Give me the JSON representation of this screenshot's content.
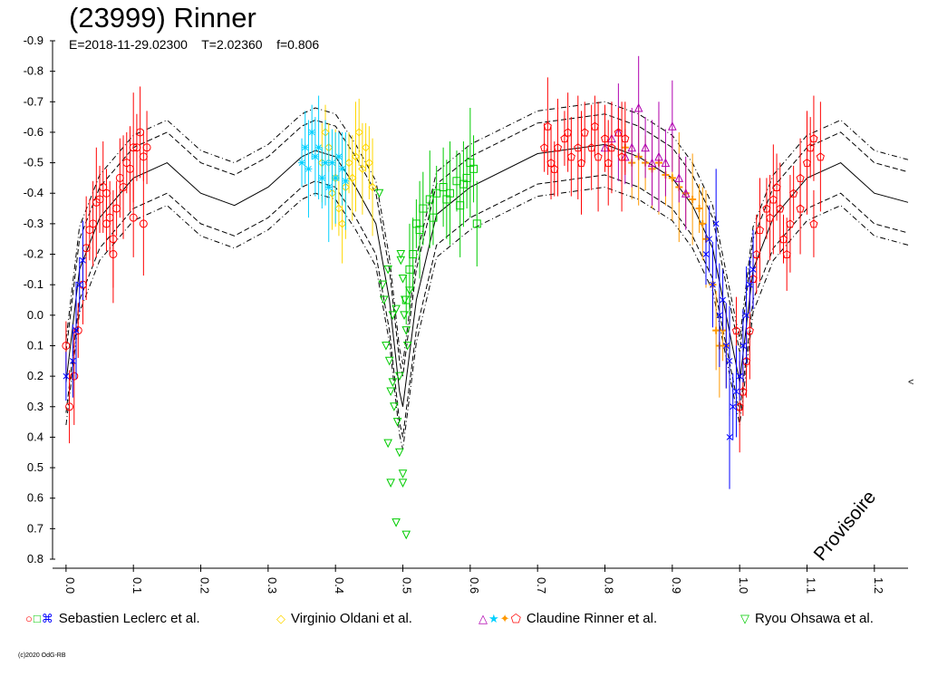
{
  "header": {
    "title": "(23999) Rinner",
    "subtitle": "E=2018-11-29.02300    T=2.02360    f=0.806"
  },
  "watermark": "Provisoire",
  "copyright": "(c)2020 OdG-RB",
  "edge_mark": "<",
  "legend": [
    {
      "label": "Sebastien Leclerc et al.",
      "symbols": [
        {
          "glyph": "○",
          "color": "#ff0000"
        },
        {
          "glyph": "□",
          "color": "#00cc00"
        },
        {
          "glyph": "⌘",
          "color": "#0000ff"
        }
      ]
    },
    {
      "label": "Virginio Oldani et al.",
      "symbols": [
        {
          "glyph": "◇",
          "color": "#ffd700"
        }
      ]
    },
    {
      "label": "Claudine Rinner et al.",
      "symbols": [
        {
          "glyph": "△",
          "color": "#b000b0"
        },
        {
          "glyph": "★",
          "color": "#00d0ff"
        },
        {
          "glyph": "✦",
          "color": "#ff9900"
        },
        {
          "glyph": "⬠",
          "color": "#ff0000"
        }
      ]
    },
    {
      "label": "Ryou Ohsawa et al.",
      "symbols": [
        {
          "glyph": "▽",
          "color": "#00cc00"
        }
      ]
    }
  ],
  "chart_data": {
    "type": "scatter",
    "title": "(23999) Rinner",
    "xlabel": "",
    "ylabel": "",
    "xlim": [
      -0.02,
      1.25
    ],
    "ylim": [
      0.8,
      -0.9
    ],
    "y_ticks": [
      "-0.9",
      "-0.8",
      "-0.7",
      "-0.6",
      "-0.5",
      "-0.4",
      "-0.3",
      "-0.2",
      "-0.1",
      "0.0",
      "0.1",
      "0.2",
      "0.3",
      "0.4",
      "0.5",
      "0.6",
      "0.7",
      "0.8"
    ],
    "x_ticks": [
      "0.0",
      "0.1",
      "0.2",
      "0.3",
      "0.4",
      "0.5",
      "0.6",
      "0.7",
      "0.8",
      "0.9",
      "1.0",
      "1.1",
      "1.2"
    ],
    "model": {
      "phase": [
        0,
        0.02,
        0.05,
        0.1,
        0.15,
        0.2,
        0.25,
        0.3,
        0.35,
        0.37,
        0.4,
        0.43,
        0.46,
        0.48,
        0.495,
        0.5,
        0.52,
        0.55,
        0.6,
        0.7,
        0.8,
        0.85,
        0.9,
        0.93,
        0.96,
        0.98,
        1.0,
        1.02,
        1.05,
        1.1,
        1.15,
        1.2,
        1.25
      ],
      "mag": [
        0.22,
        -0.15,
        -0.32,
        -0.45,
        -0.5,
        -0.4,
        -0.36,
        -0.42,
        -0.52,
        -0.54,
        -0.52,
        -0.42,
        -0.3,
        -0.05,
        0.25,
        0.3,
        -0.05,
        -0.33,
        -0.42,
        -0.53,
        -0.56,
        -0.52,
        -0.45,
        -0.36,
        -0.22,
        0.0,
        0.22,
        -0.15,
        -0.32,
        -0.45,
        -0.5,
        -0.4,
        -0.37
      ],
      "band_offsets": [
        0.1,
        0.14
      ]
    },
    "series": [
      {
        "name": "Sebastien Leclerc et al.",
        "color": "#ff0000",
        "marker": "circle",
        "points": [
          [
            0,
            0.1
          ],
          [
            0.005,
            0.3
          ],
          [
            0.012,
            0.2
          ],
          [
            0.018,
            0.05
          ],
          [
            0.025,
            -0.1
          ],
          [
            0.03,
            -0.22
          ],
          [
            0.035,
            -0.28
          ],
          [
            0.04,
            -0.3
          ],
          [
            0.045,
            -0.37
          ],
          [
            0.05,
            -0.38
          ],
          [
            0.055,
            -0.42
          ],
          [
            0.06,
            -0.4
          ],
          [
            0.065,
            -0.32
          ],
          [
            0.07,
            -0.25
          ],
          [
            0.075,
            -0.35
          ],
          [
            0.08,
            -0.45
          ],
          [
            0.085,
            -0.42
          ],
          [
            0.09,
            -0.5
          ],
          [
            0.095,
            -0.48
          ],
          [
            0.1,
            -0.55
          ],
          [
            0.105,
            -0.55
          ],
          [
            0.11,
            -0.6
          ],
          [
            0.115,
            -0.52
          ],
          [
            0.12,
            -0.55
          ],
          [
            0.07,
            -0.2
          ],
          [
            0.06,
            -0.3
          ],
          [
            0.1,
            -0.32
          ],
          [
            0.115,
            -0.3
          ]
        ]
      },
      {
        "name": "Sebastien Leclerc et al.",
        "color": "#0000ff",
        "marker": "star4",
        "points": [
          [
            0.0,
            0.2
          ],
          [
            0.01,
            0.15
          ],
          [
            0.015,
            0.05
          ],
          [
            0.02,
            -0.1
          ],
          [
            0.025,
            -0.18
          ],
          [
            0.97,
            0.0
          ],
          [
            0.975,
            -0.05
          ],
          [
            0.98,
            0.1
          ],
          [
            0.985,
            0.15
          ],
          [
            0.99,
            0.3
          ],
          [
            0.995,
            0.25
          ],
          [
            1.0,
            0.2
          ],
          [
            1.005,
            0.1
          ],
          [
            1.01,
            0.0
          ],
          [
            1.015,
            -0.1
          ],
          [
            1.02,
            -0.15
          ],
          [
            0.985,
            0.4
          ],
          [
            0.95,
            -0.2
          ],
          [
            0.96,
            -0.1
          ],
          [
            0.965,
            -0.3
          ],
          [
            0.955,
            -0.25
          ]
        ]
      },
      {
        "name": "Sebastien Leclerc et al.",
        "color": "#00cc00",
        "marker": "square",
        "points": [
          [
            0.52,
            -0.3
          ],
          [
            0.53,
            -0.35
          ],
          [
            0.54,
            -0.38
          ],
          [
            0.55,
            -0.4
          ],
          [
            0.56,
            -0.42
          ],
          [
            0.57,
            -0.4
          ],
          [
            0.58,
            -0.44
          ],
          [
            0.59,
            -0.43
          ],
          [
            0.6,
            -0.5
          ],
          [
            0.605,
            -0.48
          ],
          [
            0.51,
            -0.15
          ],
          [
            0.505,
            -0.05
          ],
          [
            0.515,
            -0.2
          ],
          [
            0.525,
            -0.28
          ],
          [
            0.545,
            -0.32
          ],
          [
            0.565,
            -0.38
          ],
          [
            0.585,
            -0.36
          ],
          [
            0.595,
            -0.45
          ],
          [
            0.61,
            -0.3
          ]
        ]
      },
      {
        "name": "Virginio Oldani et al.",
        "color": "#ffd700",
        "marker": "diamond",
        "points": [
          [
            0.39,
            -0.55
          ],
          [
            0.395,
            -0.4
          ],
          [
            0.4,
            -0.45
          ],
          [
            0.405,
            -0.35
          ],
          [
            0.41,
            -0.3
          ],
          [
            0.415,
            -0.42
          ],
          [
            0.42,
            -0.5
          ],
          [
            0.425,
            -0.45
          ],
          [
            0.43,
            -0.52
          ],
          [
            0.435,
            -0.6
          ],
          [
            0.44,
            -0.48
          ],
          [
            0.445,
            -0.55
          ],
          [
            0.45,
            -0.5
          ],
          [
            0.455,
            -0.42
          ],
          [
            0.385,
            -0.6
          ],
          [
            0.38,
            -0.5
          ]
        ]
      },
      {
        "name": "Claudine Rinner et al.",
        "color": "#b000b0",
        "marker": "triangle",
        "points": [
          [
            0.8,
            -0.55
          ],
          [
            0.81,
            -0.58
          ],
          [
            0.82,
            -0.6
          ],
          [
            0.83,
            -0.52
          ],
          [
            0.84,
            -0.55
          ],
          [
            0.85,
            -0.68
          ],
          [
            0.86,
            -0.55
          ],
          [
            0.87,
            -0.5
          ],
          [
            0.88,
            -0.52
          ],
          [
            0.89,
            -0.5
          ],
          [
            0.9,
            -0.62
          ],
          [
            0.91,
            -0.45
          ],
          [
            0.92,
            -0.4
          ]
        ]
      },
      {
        "name": "Claudine Rinner et al.",
        "color": "#00d0ff",
        "marker": "star",
        "points": [
          [
            0.35,
            -0.5
          ],
          [
            0.355,
            -0.55
          ],
          [
            0.36,
            -0.48
          ],
          [
            0.365,
            -0.6
          ],
          [
            0.37,
            -0.52
          ],
          [
            0.375,
            -0.55
          ],
          [
            0.38,
            -0.45
          ],
          [
            0.385,
            -0.5
          ],
          [
            0.39,
            -0.42
          ],
          [
            0.395,
            -0.5
          ],
          [
            0.4,
            -0.45
          ],
          [
            0.405,
            -0.52
          ],
          [
            0.41,
            -0.48
          ],
          [
            0.415,
            -0.44
          ]
        ]
      },
      {
        "name": "Claudine Rinner et al.",
        "color": "#ff9900",
        "marker": "cross",
        "points": [
          [
            0.83,
            -0.55
          ],
          [
            0.84,
            -0.5
          ],
          [
            0.85,
            -0.52
          ],
          [
            0.86,
            -0.5
          ],
          [
            0.87,
            -0.48
          ],
          [
            0.88,
            -0.5
          ],
          [
            0.89,
            -0.46
          ],
          [
            0.9,
            -0.45
          ],
          [
            0.91,
            -0.42
          ],
          [
            0.92,
            -0.4
          ],
          [
            0.93,
            -0.38
          ],
          [
            0.94,
            -0.35
          ],
          [
            0.945,
            -0.3
          ],
          [
            0.95,
            -0.25
          ],
          [
            0.96,
            -0.1
          ],
          [
            0.965,
            0.05
          ],
          [
            0.97,
            0.1
          ],
          [
            0.975,
            0.05
          ],
          [
            0.98,
            0.1
          ]
        ]
      },
      {
        "name": "Claudine Rinner et al.",
        "color": "#ff0000",
        "marker": "pentagon",
        "points": [
          [
            0.71,
            -0.55
          ],
          [
            0.72,
            -0.5
          ],
          [
            0.73,
            -0.55
          ],
          [
            0.74,
            -0.58
          ],
          [
            0.75,
            -0.52
          ],
          [
            0.76,
            -0.55
          ],
          [
            0.77,
            -0.6
          ],
          [
            0.78,
            -0.55
          ],
          [
            0.79,
            -0.52
          ],
          [
            0.8,
            -0.58
          ],
          [
            0.81,
            -0.55
          ],
          [
            0.82,
            -0.6
          ],
          [
            0.83,
            -0.58
          ],
          [
            0.715,
            -0.62
          ],
          [
            0.725,
            -0.48
          ],
          [
            0.745,
            -0.6
          ],
          [
            0.765,
            -0.5
          ],
          [
            0.785,
            -0.62
          ],
          [
            0.805,
            -0.5
          ],
          [
            0.825,
            -0.52
          ],
          [
            0.995,
            0.05
          ],
          [
            1.0,
            0.3
          ],
          [
            1.005,
            0.25
          ],
          [
            1.01,
            0.15
          ],
          [
            1.015,
            0.05
          ],
          [
            1.02,
            -0.12
          ],
          [
            1.025,
            -0.2
          ],
          [
            1.03,
            -0.28
          ],
          [
            1.04,
            -0.35
          ],
          [
            1.045,
            -0.32
          ],
          [
            1.05,
            -0.38
          ],
          [
            1.055,
            -0.42
          ],
          [
            1.06,
            -0.35
          ],
          [
            1.065,
            -0.25
          ],
          [
            1.07,
            -0.2
          ],
          [
            1.075,
            -0.3
          ],
          [
            1.08,
            -0.4
          ],
          [
            1.09,
            -0.45
          ],
          [
            1.1,
            -0.5
          ],
          [
            1.105,
            -0.55
          ],
          [
            1.11,
            -0.58
          ],
          [
            1.12,
            -0.52
          ],
          [
            1.11,
            -0.3
          ],
          [
            1.09,
            -0.35
          ]
        ]
      },
      {
        "name": "Ryou Ohsawa et al.",
        "color": "#00cc00",
        "marker": "triangle-down",
        "points": [
          [
            0.465,
            -0.4
          ],
          [
            0.47,
            -0.1
          ],
          [
            0.472,
            -0.05
          ],
          [
            0.475,
            0.1
          ],
          [
            0.478,
            -0.15
          ],
          [
            0.48,
            0.15
          ],
          [
            0.482,
            0.25
          ],
          [
            0.485,
            0.0
          ],
          [
            0.487,
            0.3
          ],
          [
            0.49,
            -0.02
          ],
          [
            0.492,
            0.35
          ],
          [
            0.495,
            0.45
          ],
          [
            0.497,
            -0.2
          ],
          [
            0.5,
            -0.12
          ],
          [
            0.502,
            0.0
          ],
          [
            0.505,
            0.05
          ],
          [
            0.507,
            0.1
          ],
          [
            0.51,
            -0.08
          ],
          [
            0.478,
            0.42
          ],
          [
            0.482,
            0.55
          ],
          [
            0.49,
            0.68
          ],
          [
            0.5,
            0.55
          ],
          [
            0.505,
            0.72
          ],
          [
            0.495,
            0.2
          ],
          [
            0.485,
            0.22
          ],
          [
            0.5,
            0.52
          ],
          [
            0.497,
            -0.18
          ],
          [
            0.503,
            -0.05
          ]
        ]
      }
    ]
  }
}
